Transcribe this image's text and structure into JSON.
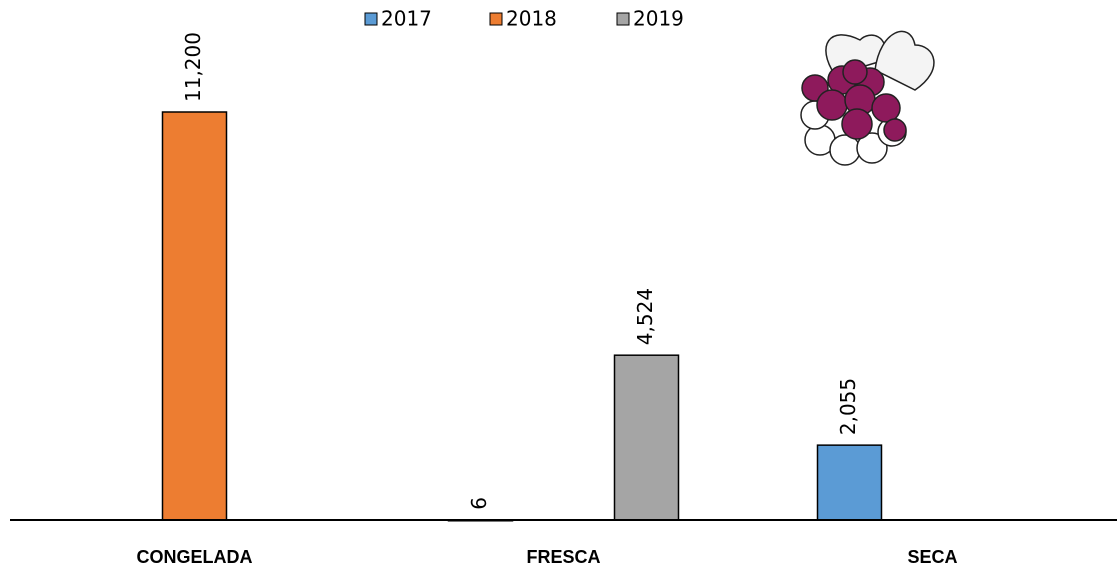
{
  "chart_data": {
    "type": "bar",
    "categories": [
      "CONGELADA",
      "FRESCA",
      "SECA"
    ],
    "series": [
      {
        "name": "2017",
        "color": "#5b9bd5",
        "values": [
          null,
          6,
          2055
        ],
        "value_labels": [
          null,
          "6",
          "2,055"
        ]
      },
      {
        "name": "2018",
        "color": "#ed7d31",
        "values": [
          11200,
          null,
          null
        ],
        "value_labels": [
          "11,200",
          null,
          null
        ]
      },
      {
        "name": "2019",
        "color": "#a5a5a5",
        "values": [
          null,
          4524,
          null
        ],
        "value_labels": [
          null,
          "4,524",
          null
        ]
      }
    ],
    "ylim": [
      0,
      14000
    ],
    "legend": "top"
  }
}
